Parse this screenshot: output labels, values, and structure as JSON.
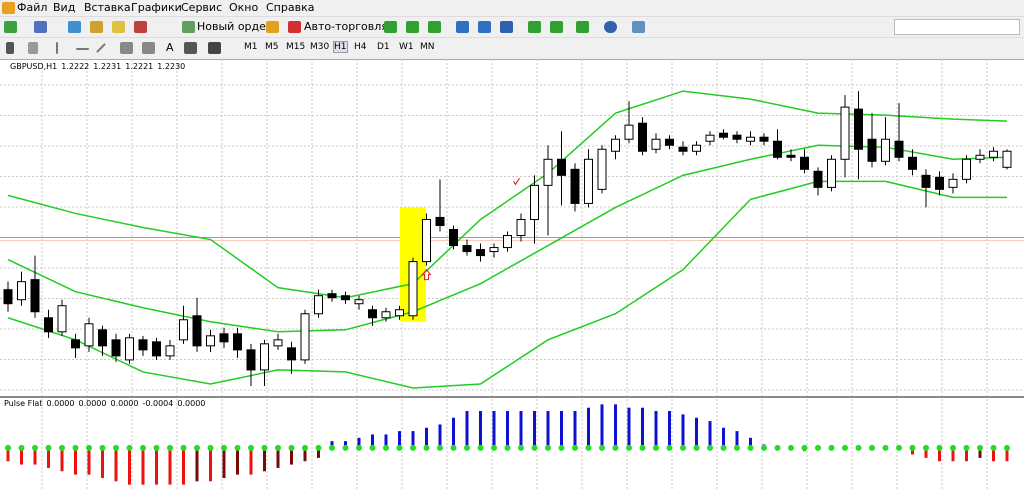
{
  "menu": {
    "items": [
      "Файл",
      "Вид",
      "Вставка",
      "Графики",
      "Сервис",
      "Окно",
      "Справка"
    ]
  },
  "toolbar": {
    "new_order": "Новый ордер",
    "auto_trading": "Авто-торговля",
    "text_tool": "A",
    "timeframes": [
      "M1",
      "M5",
      "M15",
      "M30",
      "H1",
      "H4",
      "D1",
      "W1",
      "MN"
    ]
  },
  "header": {
    "symbol": "GBPUSD,H1",
    "values": [
      "1.2222",
      "1.2231",
      "1.2221",
      "1.2230"
    ]
  },
  "pulse_header": {
    "name": "Pulse Flat",
    "values": [
      "0.0000",
      "0.0000",
      "0.0000",
      "-0.0004",
      "0.0000"
    ]
  },
  "chart_data": {
    "type": "candlestick",
    "ylim": [
      1.2108,
      1.2274
    ],
    "up_color": "#ffffff",
    "down_color": "#000000",
    "level": 1.2187,
    "level_color": "#f08060",
    "open": [
      1.2161,
      1.2156,
      1.2166,
      1.2147,
      1.214,
      1.2136,
      1.2133,
      1.2141,
      1.2136,
      1.2126,
      1.2136,
      1.2135,
      1.2128,
      1.2136,
      1.2148,
      1.2133,
      1.2139,
      1.2139,
      1.2131,
      1.2121,
      1.2133,
      1.2132,
      1.2126,
      1.2149,
      1.2159,
      1.2158,
      1.2154,
      1.2151,
      1.2147,
      1.2148,
      1.2148,
      1.2175,
      1.2197,
      1.2191,
      1.2183,
      1.2181,
      1.218,
      1.2182,
      1.2188,
      1.2196,
      1.2213,
      1.2226,
      1.2221,
      1.2204,
      1.2211,
      1.223,
      1.2236,
      1.2244,
      1.2231,
      1.2236,
      1.2232,
      1.223,
      1.2235,
      1.2239,
      1.2238,
      1.2235,
      1.2237,
      1.2235,
      1.2228,
      1.2227,
      1.222,
      1.2212,
      1.2226,
      1.2251,
      1.2236,
      1.2225,
      1.2235,
      1.2227,
      1.2218,
      1.2217,
      1.2212,
      1.2216,
      1.2226,
      1.2227,
      1.2222
    ],
    "high": [
      1.2165,
      1.217,
      1.2178,
      1.2151,
      1.2156,
      1.2139,
      1.2147,
      1.2143,
      1.2139,
      1.2139,
      1.2138,
      1.2137,
      1.2136,
      1.2153,
      1.2157,
      1.2141,
      1.2142,
      1.2142,
      1.2134,
      1.2136,
      1.2139,
      1.2135,
      1.2151,
      1.2161,
      1.2161,
      1.216,
      1.2158,
      1.2153,
      1.2152,
      1.2153,
      1.2177,
      1.2199,
      1.2216,
      1.2193,
      1.2186,
      1.2184,
      1.2184,
      1.219,
      1.2199,
      1.2218,
      1.2233,
      1.224,
      1.2224,
      1.2231,
      1.2233,
      1.2238,
      1.2255,
      1.2247,
      1.2239,
      1.2238,
      1.2235,
      1.2235,
      1.224,
      1.2241,
      1.224,
      1.224,
      1.2239,
      1.2241,
      1.2231,
      1.2231,
      1.2222,
      1.2228,
      1.2258,
      1.226,
      1.2249,
      1.2247,
      1.2254,
      1.2231,
      1.2221,
      1.222,
      1.2219,
      1.2228,
      1.2231,
      1.2232,
      1.2231
    ],
    "low": [
      1.215,
      1.2153,
      1.2147,
      1.2137,
      1.2138,
      1.2127,
      1.213,
      1.2128,
      1.2125,
      1.2124,
      1.2128,
      1.2126,
      1.2126,
      1.2134,
      1.213,
      1.213,
      1.2132,
      1.2127,
      1.2113,
      1.2113,
      1.2131,
      1.2119,
      1.2124,
      1.2147,
      1.2155,
      1.2154,
      1.2151,
      1.2143,
      1.2145,
      1.2146,
      1.2146,
      1.2173,
      1.219,
      1.2181,
      1.2178,
      1.2175,
      1.2177,
      1.218,
      1.2185,
      1.2184,
      1.2188,
      1.2203,
      1.22,
      1.2202,
      1.2209,
      1.2226,
      1.2234,
      1.2228,
      1.2229,
      1.2231,
      1.2228,
      1.2228,
      1.2233,
      1.2236,
      1.2234,
      1.2233,
      1.2233,
      1.2226,
      1.2225,
      1.2219,
      1.2208,
      1.221,
      1.2217,
      1.2216,
      1.2222,
      1.2223,
      1.2225,
      1.2218,
      1.2202,
      1.2208,
      1.2209,
      1.2214,
      1.2224,
      1.2225,
      1.2221
    ],
    "close": [
      1.2154,
      1.2165,
      1.215,
      1.214,
      1.2153,
      1.2132,
      1.2144,
      1.2133,
      1.2128,
      1.2137,
      1.2131,
      1.2128,
      1.2133,
      1.2146,
      1.2133,
      1.2138,
      1.2135,
      1.2131,
      1.2121,
      1.2134,
      1.2136,
      1.2126,
      1.2149,
      1.2158,
      1.2157,
      1.2156,
      1.2156,
      1.2147,
      1.215,
      1.2151,
      1.2175,
      1.2196,
      1.2193,
      1.2183,
      1.218,
      1.2178,
      1.2182,
      1.2188,
      1.2196,
      1.2213,
      1.2226,
      1.2218,
      1.2204,
      1.2226,
      1.2231,
      1.2236,
      1.2243,
      1.223,
      1.2236,
      1.2233,
      1.223,
      1.2233,
      1.2238,
      1.2237,
      1.2236,
      1.2237,
      1.2235,
      1.2227,
      1.2227,
      1.2221,
      1.2212,
      1.2226,
      1.2252,
      1.2231,
      1.2225,
      1.2236,
      1.2227,
      1.2221,
      1.2212,
      1.2211,
      1.2216,
      1.2226,
      1.2228,
      1.223,
      1.223
    ],
    "bands": {
      "color": "#22cc22",
      "index": [
        0,
        5,
        10,
        15,
        20,
        25,
        30,
        35,
        40,
        45,
        50,
        55,
        60,
        65,
        70,
        74
      ],
      "upper": [
        1.2208,
        1.2199,
        1.2192,
        1.2186,
        1.2162,
        1.2157,
        1.2164,
        1.2196,
        1.2219,
        1.2249,
        1.226,
        1.2256,
        1.2249,
        1.2248,
        1.2246,
        1.2245
      ],
      "middle": [
        1.2176,
        1.216,
        1.2152,
        1.2145,
        1.214,
        1.2141,
        1.215,
        1.2164,
        1.2183,
        1.2202,
        1.2218,
        1.2226,
        1.2233,
        1.2232,
        1.2226,
        1.2227
      ],
      "lower": [
        1.2147,
        1.2136,
        1.212,
        1.2114,
        1.2121,
        1.212,
        1.2112,
        1.2114,
        1.2136,
        1.2149,
        1.2171,
        1.2206,
        1.2215,
        1.2215,
        1.2207,
        1.2207
      ]
    },
    "pulse": {
      "ylim": [
        -0.0012,
        0.0014
      ],
      "up_color": "#1010d0",
      "down_color": "#ee1111",
      "fading_color": "#7a0a0a",
      "dot_color": "#22dd22",
      "values": [
        -0.0004,
        -0.0005,
        -0.0005,
        -0.0006,
        -0.0007,
        -0.0008,
        -0.0008,
        -0.0009,
        -0.001,
        -0.0011,
        -0.0011,
        -0.0011,
        -0.0011,
        -0.0011,
        -0.001,
        -0.001,
        -0.0009,
        -0.0008,
        -0.0008,
        -0.0007,
        -0.0006,
        -0.0005,
        -0.0004,
        -0.0003,
        0.0002,
        0.0002,
        0.0003,
        0.0004,
        0.0004,
        0.0005,
        0.0005,
        0.0006,
        0.0007,
        0.0009,
        0.0011,
        0.0011,
        0.0011,
        0.0011,
        0.0011,
        0.0011,
        0.0011,
        0.0011,
        0.0011,
        0.0012,
        0.0013,
        0.0013,
        0.0012,
        0.0012,
        0.0011,
        0.0011,
        0.001,
        0.0009,
        0.0008,
        0.0006,
        0.0005,
        0.0003,
        0.0001,
        0,
        0,
        -0.0001,
        0,
        0,
        0,
        0,
        0,
        0,
        0,
        -0.0002,
        -0.0003,
        -0.0004,
        -0.0004,
        -0.0004,
        -0.0003,
        -0.0004,
        -0.0004
      ]
    }
  }
}
